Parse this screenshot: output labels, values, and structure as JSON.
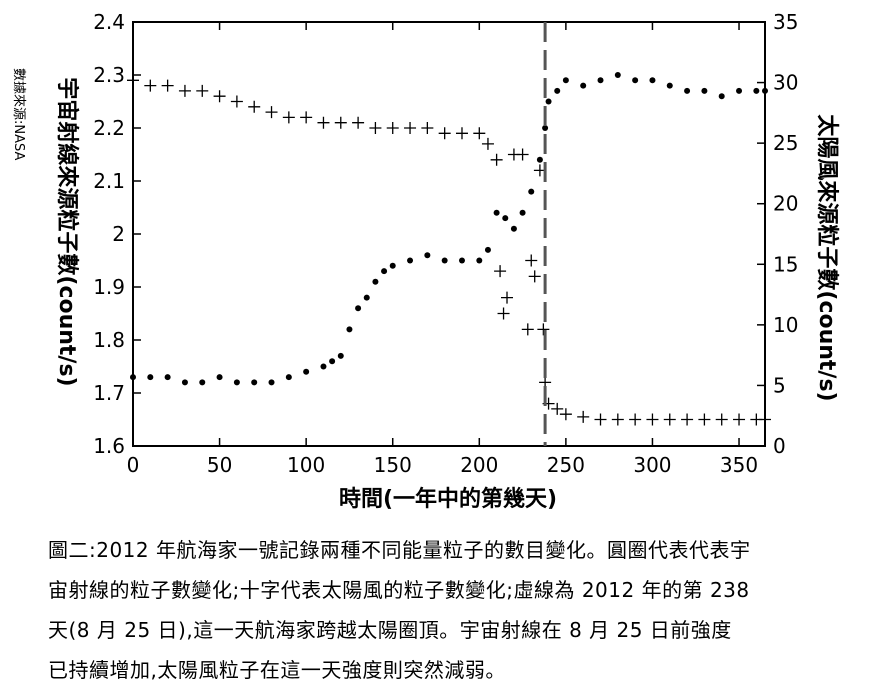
{
  "chart_data": {
    "type": "scatter",
    "xlabel": "時間(一年中的第幾天)",
    "ylabel_left": "宇宙射線來源粒子數(count/s)",
    "ylabel_right": "太陽風來源粒子數(count/s)",
    "source": "數據來源:NASA",
    "xlim": [
      0,
      365
    ],
    "ylim_left": [
      1.6,
      2.4
    ],
    "ylim_right": [
      0,
      35
    ],
    "xticks": [
      "0",
      "50",
      "100",
      "150",
      "200",
      "250",
      "300",
      "350"
    ],
    "yticks_left": [
      "1.6",
      "1.7",
      "1.8",
      "1.9",
      "2",
      "2.1",
      "2.2",
      "2.3",
      "2.4"
    ],
    "yticks_right": [
      "0",
      "5",
      "10",
      "15",
      "20",
      "25",
      "30",
      "35"
    ],
    "reference_line_x": 238,
    "series": [
      {
        "axis": "left",
        "marker": "circle",
        "points": [
          [
            0,
            1.73
          ],
          [
            10,
            1.73
          ],
          [
            20,
            1.73
          ],
          [
            30,
            1.72
          ],
          [
            40,
            1.72
          ],
          [
            50,
            1.73
          ],
          [
            60,
            1.72
          ],
          [
            70,
            1.72
          ],
          [
            80,
            1.72
          ],
          [
            90,
            1.73
          ],
          [
            100,
            1.74
          ],
          [
            110,
            1.75
          ],
          [
            115,
            1.76
          ],
          [
            120,
            1.77
          ],
          [
            125,
            1.82
          ],
          [
            130,
            1.86
          ],
          [
            135,
            1.88
          ],
          [
            140,
            1.91
          ],
          [
            145,
            1.93
          ],
          [
            150,
            1.94
          ],
          [
            160,
            1.95
          ],
          [
            170,
            1.96
          ],
          [
            180,
            1.95
          ],
          [
            190,
            1.95
          ],
          [
            200,
            1.95
          ],
          [
            205,
            1.97
          ],
          [
            210,
            2.04
          ],
          [
            215,
            2.03
          ],
          [
            220,
            2.01
          ],
          [
            225,
            2.04
          ],
          [
            230,
            2.08
          ],
          [
            235,
            2.14
          ],
          [
            238,
            2.2
          ],
          [
            240,
            2.25
          ],
          [
            245,
            2.27
          ],
          [
            250,
            2.29
          ],
          [
            260,
            2.28
          ],
          [
            270,
            2.29
          ],
          [
            280,
            2.3
          ],
          [
            290,
            2.29
          ],
          [
            300,
            2.29
          ],
          [
            310,
            2.28
          ],
          [
            320,
            2.27
          ],
          [
            330,
            2.27
          ],
          [
            340,
            2.26
          ],
          [
            350,
            2.27
          ],
          [
            360,
            2.27
          ],
          [
            365,
            2.27
          ]
        ]
      },
      {
        "axis": "left",
        "marker": "cross",
        "points": [
          [
            0,
            2.29
          ],
          [
            10,
            2.28
          ],
          [
            20,
            2.28
          ],
          [
            30,
            2.27
          ],
          [
            40,
            2.27
          ],
          [
            50,
            2.26
          ],
          [
            60,
            2.25
          ],
          [
            70,
            2.24
          ],
          [
            80,
            2.23
          ],
          [
            90,
            2.22
          ],
          [
            100,
            2.22
          ],
          [
            110,
            2.21
          ],
          [
            120,
            2.21
          ],
          [
            130,
            2.21
          ],
          [
            140,
            2.2
          ],
          [
            150,
            2.2
          ],
          [
            160,
            2.2
          ],
          [
            170,
            2.2
          ],
          [
            180,
            2.19
          ],
          [
            190,
            2.19
          ],
          [
            200,
            2.19
          ],
          [
            205,
            2.17
          ],
          [
            210,
            2.14
          ],
          [
            212,
            1.93
          ],
          [
            214,
            1.85
          ],
          [
            216,
            1.88
          ],
          [
            220,
            2.15
          ],
          [
            225,
            2.15
          ],
          [
            228,
            1.82
          ],
          [
            230,
            1.95
          ],
          [
            232,
            1.92
          ],
          [
            235,
            2.12
          ],
          [
            237,
            1.82
          ],
          [
            238,
            1.72
          ],
          [
            240,
            1.68
          ],
          [
            245,
            1.67
          ],
          [
            250,
            1.66
          ],
          [
            260,
            1.655
          ],
          [
            270,
            1.65
          ],
          [
            280,
            1.65
          ],
          [
            290,
            1.65
          ],
          [
            300,
            1.65
          ],
          [
            310,
            1.65
          ],
          [
            320,
            1.65
          ],
          [
            330,
            1.65
          ],
          [
            340,
            1.65
          ],
          [
            350,
            1.65
          ],
          [
            360,
            1.65
          ],
          [
            365,
            1.65
          ]
        ]
      }
    ]
  },
  "caption": {
    "lines": [
      "圖二:2012 年航海家一號記錄兩種不同能量粒子的數目變化。圓圈代表代表宇",
      "宙射線的粒子數變化;十字代表太陽風的粒子數變化;虛線為 2012 年的第 238",
      "天(8 月 25 日),這一天航海家跨越太陽圈頂。宇宙射線在 8 月 25 日前強度",
      "已持續增加,太陽風粒子在這一天強度則突然減弱。"
    ]
  }
}
